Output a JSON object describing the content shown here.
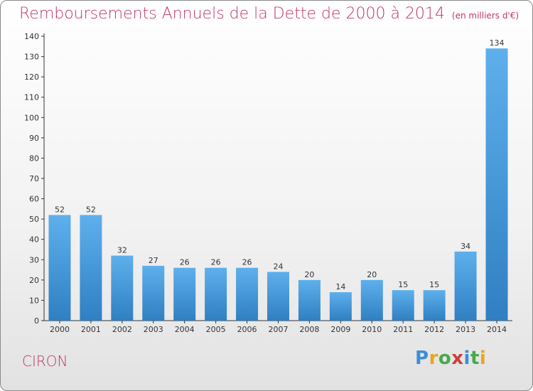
{
  "title": {
    "main": "Remboursements Annuels de la Dette de 2000 à 2014",
    "unit": "(en milliers d'€)"
  },
  "commune": "CIRON",
  "logo": {
    "letters": [
      "P",
      "r",
      "o",
      "x",
      "i",
      "t",
      "i"
    ],
    "colors": [
      "#3a8fd6",
      "#e8a520",
      "#4aa84a",
      "#d23c3c",
      "#3a8fd6",
      "#4aa84a",
      "#e8a520"
    ]
  },
  "colors": {
    "bar": "#4a9fe0",
    "bar_dark": "#2f7fc2",
    "title": "#c0385e"
  },
  "chart_data": {
    "type": "bar",
    "title": "Remboursements Annuels de la Dette de 2000 à 2014",
    "subtitle": "(en milliers d'€)",
    "xlabel": "",
    "ylabel": "",
    "categories": [
      "2000",
      "2001",
      "2002",
      "2003",
      "2004",
      "2005",
      "2006",
      "2007",
      "2008",
      "2009",
      "2010",
      "2011",
      "2012",
      "2013",
      "2014"
    ],
    "values": [
      52,
      52,
      32,
      27,
      26,
      26,
      26,
      24,
      20,
      14,
      20,
      15,
      15,
      34,
      134
    ],
    "ylim": [
      0,
      140
    ],
    "yticks": [
      0,
      10,
      20,
      30,
      40,
      50,
      60,
      70,
      80,
      90,
      100,
      110,
      120,
      130,
      140
    ],
    "grid": false,
    "legend": "none"
  }
}
